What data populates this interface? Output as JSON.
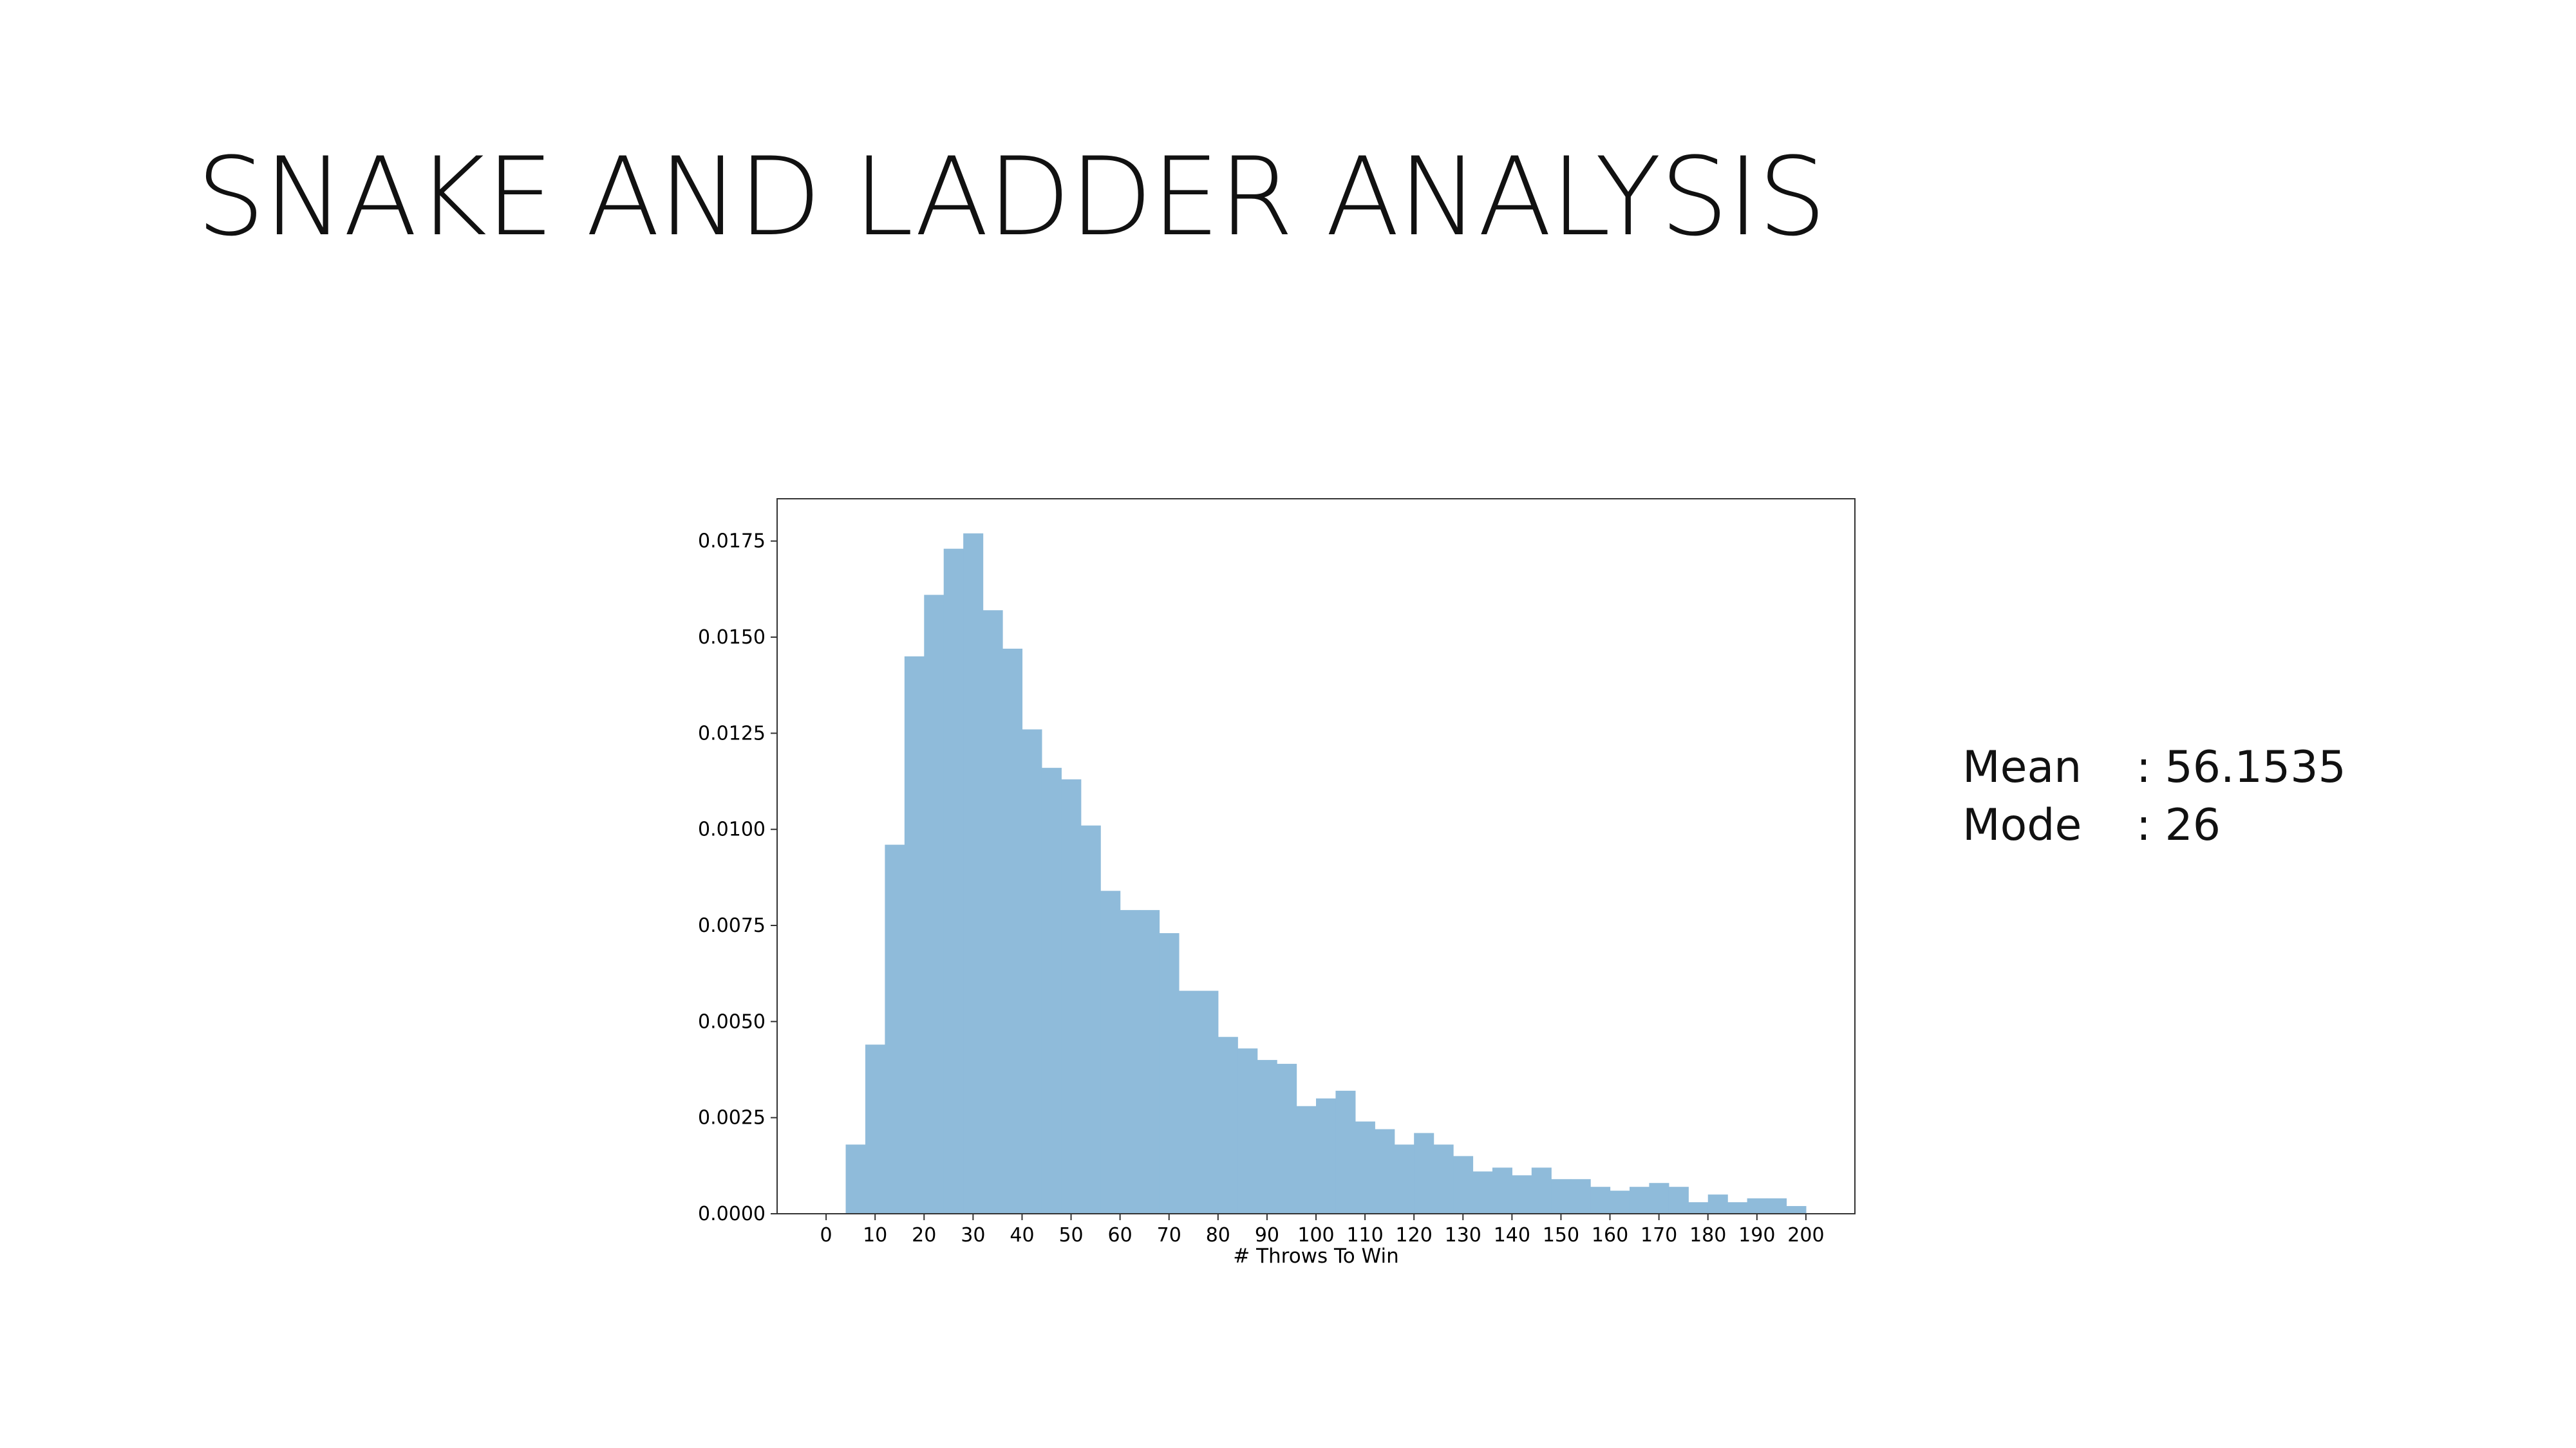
{
  "slide": {
    "title": "SNAKE AND LADDER ANALYSIS"
  },
  "stats": {
    "mean_label": "Mean",
    "mean_value": ": 56.1535",
    "mode_label": "Mode",
    "mode_value": ": 26"
  },
  "colors": {
    "bar_fill": "#8fbbda",
    "axis": "#333333"
  },
  "chart_data": {
    "type": "bar",
    "title": "",
    "xlabel": "# Throws To Win",
    "ylabel": "",
    "xlim": [
      -10,
      210
    ],
    "ylim": [
      0,
      0.0186
    ],
    "bin_width": 4,
    "bin_edges_start": 4,
    "xticks": [
      "0",
      "10",
      "20",
      "30",
      "40",
      "50",
      "60",
      "70",
      "80",
      "90",
      "100",
      "110",
      "120",
      "130",
      "140",
      "150",
      "160",
      "170",
      "180",
      "190",
      "200"
    ],
    "yticks": [
      "0.0000",
      "0.0025",
      "0.0050",
      "0.0075",
      "0.0100",
      "0.0125",
      "0.0150",
      "0.0175"
    ],
    "values": [
      0.0018,
      0.0044,
      0.0096,
      0.0145,
      0.0161,
      0.0173,
      0.0177,
      0.0157,
      0.0147,
      0.0126,
      0.0116,
      0.0113,
      0.0101,
      0.0084,
      0.0079,
      0.0079,
      0.0073,
      0.0058,
      0.0058,
      0.0046,
      0.0043,
      0.004,
      0.0039,
      0.0028,
      0.003,
      0.0032,
      0.0024,
      0.0022,
      0.0018,
      0.0021,
      0.0018,
      0.0015,
      0.0011,
      0.0012,
      0.001,
      0.0012,
      0.0009,
      0.0009,
      0.0007,
      0.0006,
      0.0007,
      0.0008,
      0.0007,
      0.0003,
      0.0005,
      0.0003,
      0.0004,
      0.0004,
      0.0002
    ],
    "grid": false,
    "legend": "none"
  }
}
